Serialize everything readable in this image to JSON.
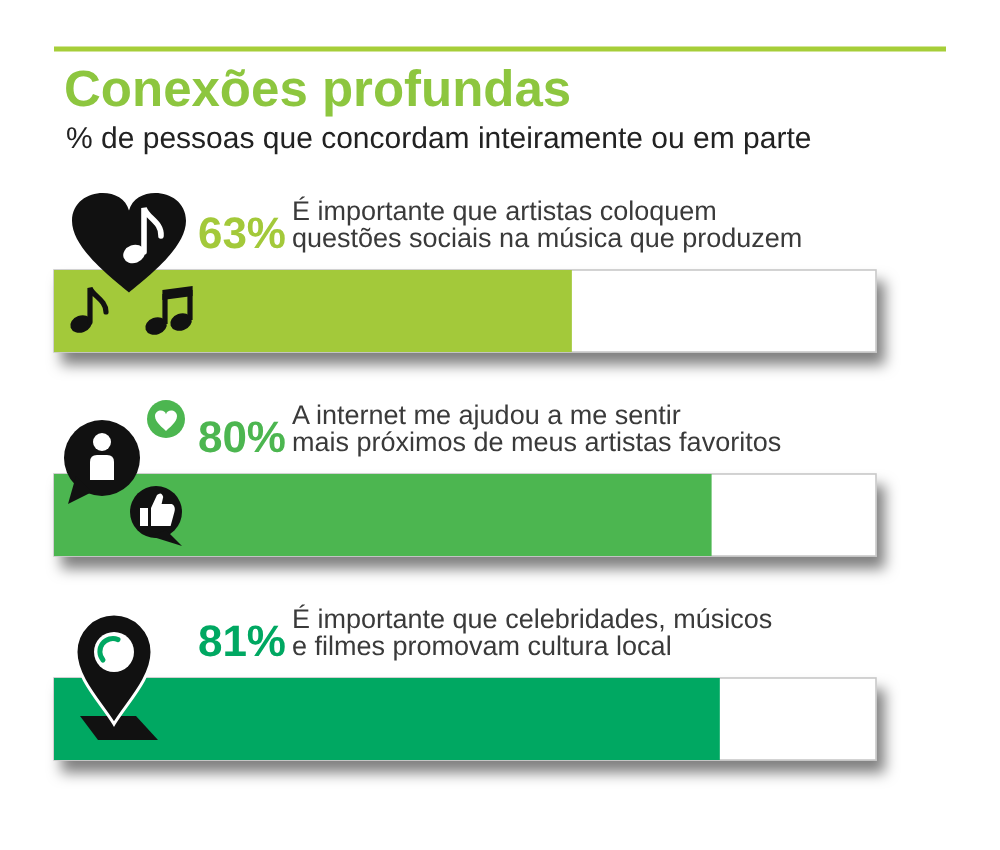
{
  "chart_data": {
    "type": "bar",
    "orientation": "horizontal",
    "title": "Conexões profundas",
    "subtitle": "% de pessoas que concordam inteiramente ou em parte",
    "categories": [
      "É importante que artistas coloquem\nquestões sociais na música que produzem",
      "A internet me ajudou a me sentir\nmais próximos de meus artistas favoritos",
      "É importante que celebridades, músicos\ne filmes promovam cultura local"
    ],
    "values": [
      63,
      80,
      81
    ],
    "colors": [
      "#a3c93a",
      "#4cb650",
      "#00a862"
    ],
    "value_labels": [
      "63%",
      "80%",
      "81%"
    ],
    "xlim": [
      0,
      100
    ],
    "tick_labels": "y"
  }
}
